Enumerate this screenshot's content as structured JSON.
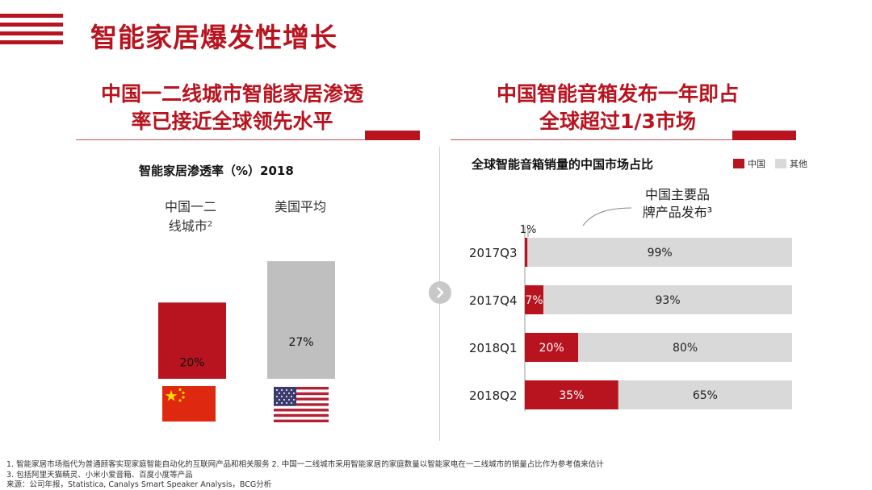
{
  "title": "智能家居爆发性增长",
  "left_section": {
    "title_line1": "中国一二线城市智能家居渗透",
    "title_line2": "率已接近全球领先水平"
  },
  "right_section": {
    "title_line1": "中国智能音箱发布一年即占",
    "title_line2": "全球超过1/3市场"
  },
  "footnotes": {
    "line1": "1. 智能家居市场指代为普通顾客实现家庭智能自动化的互联网产品和相关服务   2. 中国一二线城市采用智能家居的家庭数量以智能家电在一二线城市的销量占比作为参考值来估计",
    "line2": "3. 包括阿里天猫精灵、小米小爱音箱、百度小度等产品",
    "line3": "来源：公司年报，Statistica, Canalys Smart Speaker Analysis，BCG分析"
  },
  "colors": {
    "accent": "#b8141f",
    "other": "#d9d9d9",
    "us_bar": "#bfbfbf",
    "text": "#222222"
  },
  "icons": {
    "nav": "chevron-right-icon",
    "flag_cn": "china-flag-icon",
    "flag_us": "us-flag-icon"
  },
  "chart_data": [
    {
      "type": "bar",
      "title": "智能家居渗透率（%）2018",
      "categories": [
        "中国一二线城市²",
        "美国平均"
      ],
      "category_lines": [
        [
          "中国一二",
          "线城市²"
        ],
        [
          "美国平均"
        ]
      ],
      "values": [
        20,
        27
      ],
      "value_labels": [
        "20%",
        "27%"
      ],
      "ylim": [
        0,
        30
      ]
    },
    {
      "type": "bar",
      "orientation": "horizontal",
      "stacked": true,
      "percent": true,
      "title": "全球智能音箱销量的中国市场占比",
      "categories": [
        "2017Q3",
        "2017Q4",
        "2018Q1",
        "2018Q2"
      ],
      "series": [
        {
          "name": "中国",
          "values": [
            1,
            7,
            20,
            35
          ],
          "labels": [
            "1%",
            "7%",
            "20%",
            "35%"
          ]
        },
        {
          "name": "其他",
          "values": [
            99,
            93,
            80,
            65
          ],
          "labels": [
            "99%",
            "93%",
            "80%",
            "65%"
          ]
        }
      ],
      "annotation": {
        "line1": "中国主要品",
        "line2": "牌产品发布³"
      },
      "legend_position": "top-right"
    }
  ]
}
